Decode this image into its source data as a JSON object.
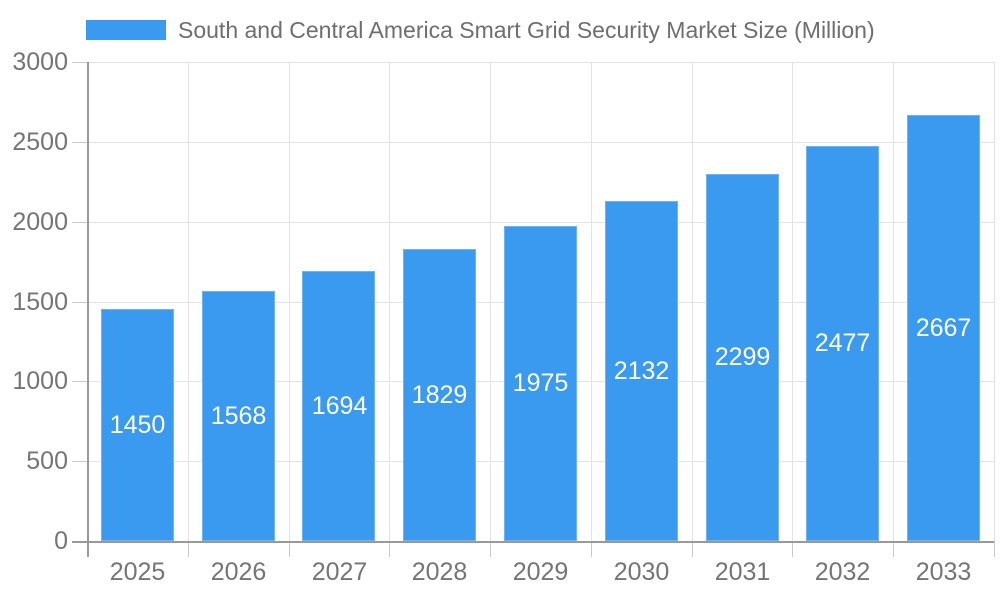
{
  "chart_data": {
    "type": "bar",
    "title": "South and Central America Smart Grid Security Market Size (Million)",
    "categories": [
      "2025",
      "2026",
      "2027",
      "2028",
      "2029",
      "2030",
      "2031",
      "2032",
      "2033"
    ],
    "values": [
      1450,
      1568,
      1694,
      1829,
      1975,
      2132,
      2299,
      2477,
      2667
    ],
    "series": [
      {
        "name": "South and Central America Smart Grid Security Market Size (Million)",
        "values": [
          1450,
          1568,
          1694,
          1829,
          1975,
          2132,
          2299,
          2477,
          2667
        ]
      }
    ],
    "xlabel": "",
    "ylabel": "",
    "ylim": [
      0,
      3000
    ],
    "yticks": [
      0,
      500,
      1000,
      1500,
      2000,
      2500,
      3000
    ],
    "grid": true,
    "legend_position": "top-left",
    "value_labels": "inside-center"
  },
  "colors": {
    "bar_fill": "#3A9AEF",
    "bar_edge": "#6FB4F1",
    "value_label": "#FFFFFF",
    "axis_label": "#757575",
    "legend_text": "#6E6E6E",
    "axis_line": "#999999",
    "gridline": "#E3E3E3",
    "tick": "#C9C9C9",
    "background": "#FFFFFF"
  }
}
